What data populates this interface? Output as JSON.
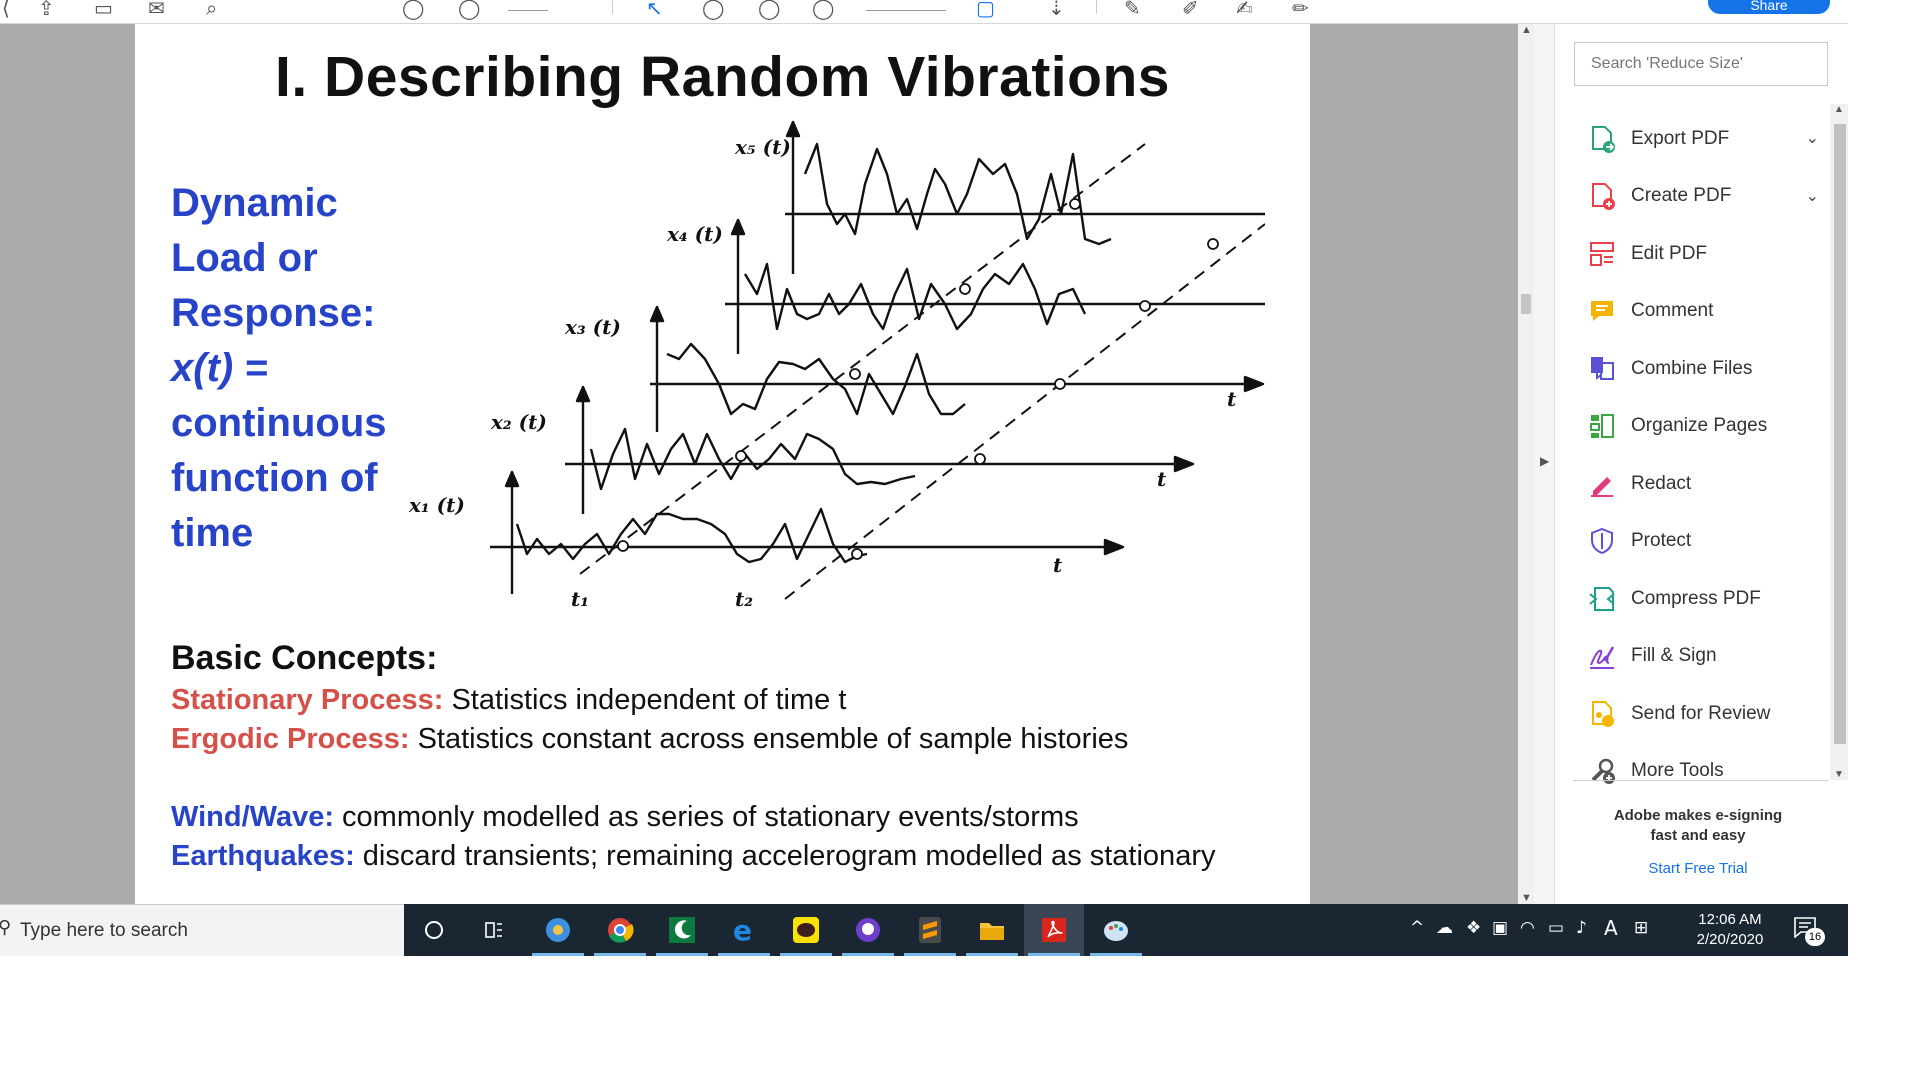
{
  "toolbar": {
    "share_label": "Share",
    "page_number": "",
    "zoom": ""
  },
  "slide": {
    "title": "I. Describing Random Vibrations",
    "dynamic_lines": [
      "Dynamic",
      "Load or",
      "Response:",
      "x(t) =",
      "continuous",
      "function of",
      "time"
    ],
    "figure_labels": {
      "x5": "x₅ (t)",
      "x4": "x₄ (t)",
      "x3": "x₃ (t)",
      "x2": "x₂ (t)",
      "x1": "x₁ (t)",
      "t": "t",
      "t1": "t₁",
      "t2": "t₂"
    },
    "basic_concepts": "Basic Concepts:",
    "stationary_label": "Stationary Process:",
    "stationary_text": " Statistics independent of time t",
    "ergodic_label": "Ergodic Process:",
    "ergodic_text": " Statistics constant across ensemble of sample histories",
    "wind_label": "Wind/Wave:",
    "wind_text": " commonly modelled as series of stationary events/storms",
    "eq_label": "Earthquakes:",
    "eq_text": " discard transients; remaining accelerogram modelled as stationary"
  },
  "tools_panel": {
    "search_placeholder": "Search 'Reduce Size'",
    "tools": [
      {
        "label": "Export PDF",
        "icon": "export-pdf-icon",
        "color": "#2aa37a",
        "has_chevron": true
      },
      {
        "label": "Create PDF",
        "icon": "create-pdf-icon",
        "color": "#e8414d",
        "has_chevron": true
      },
      {
        "label": "Edit PDF",
        "icon": "edit-pdf-icon",
        "color": "#e8414d",
        "has_chevron": false
      },
      {
        "label": "Comment",
        "icon": "comment-icon",
        "color": "#f5b400",
        "has_chevron": false
      },
      {
        "label": "Combine Files",
        "icon": "combine-files-icon",
        "color": "#5a52d6",
        "has_chevron": false
      },
      {
        "label": "Organize Pages",
        "icon": "organize-pages-icon",
        "color": "#3aa543",
        "has_chevron": false
      },
      {
        "label": "Redact",
        "icon": "redact-icon",
        "color": "#e03c7e",
        "has_chevron": false
      },
      {
        "label": "Protect",
        "icon": "protect-icon",
        "color": "#5a52d6",
        "has_chevron": false
      },
      {
        "label": "Compress PDF",
        "icon": "compress-pdf-icon",
        "color": "#1d9e8f",
        "has_chevron": false
      },
      {
        "label": "Fill & Sign",
        "icon": "fill-sign-icon",
        "color": "#8a3fd9",
        "has_chevron": false
      },
      {
        "label": "Send for Review",
        "icon": "send-for-review-icon",
        "color": "#f5b400",
        "has_chevron": false
      },
      {
        "label": "More Tools",
        "icon": "more-tools-icon",
        "color": "#555555",
        "has_chevron": false
      }
    ],
    "promo_line1": "Adobe makes e-signing",
    "promo_line2": "fast and easy",
    "promo_link": "Start Free Trial"
  },
  "taskbar": {
    "search_placeholder": "Type here to search",
    "time": "12:06 AM",
    "date": "2/20/2020",
    "notification_count": "16",
    "ime_label": "A"
  }
}
